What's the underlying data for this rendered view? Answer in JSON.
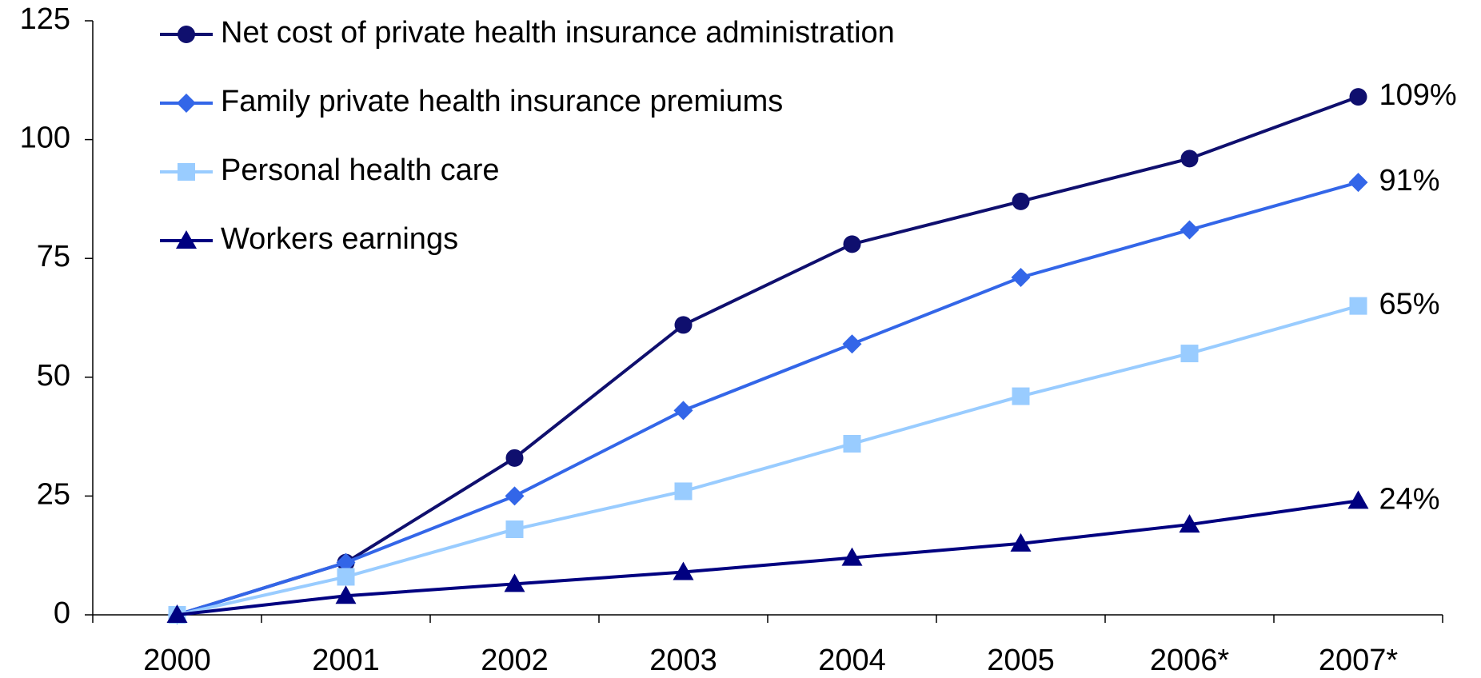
{
  "chart_data": {
    "type": "line",
    "categories": [
      "2000",
      "2001",
      "2002",
      "2003",
      "2004",
      "2005",
      "2006*",
      "2007*"
    ],
    "series": [
      {
        "name": "Net cost of private health insurance administration",
        "color": "#0f0f6e",
        "marker": "circle",
        "values": [
          0,
          11,
          33,
          61,
          78,
          87,
          96,
          109
        ],
        "value_labels": [
          null,
          null,
          null,
          null,
          null,
          null,
          null,
          "109%"
        ]
      },
      {
        "name": "Family private health insurance premiums",
        "color": "#3366e8",
        "marker": "diamond",
        "values": [
          0,
          11,
          25,
          43,
          57,
          71,
          81,
          91
        ],
        "value_labels": [
          null,
          null,
          null,
          null,
          null,
          null,
          null,
          "91%"
        ]
      },
      {
        "name": "Personal health care",
        "color": "#99ccff",
        "marker": "square",
        "values": [
          0,
          8,
          18,
          26,
          36,
          46,
          55,
          65
        ],
        "value_labels": [
          null,
          null,
          null,
          null,
          null,
          null,
          null,
          "65%"
        ]
      },
      {
        "name": "Workers earnings",
        "color": "#000080",
        "marker": "triangle",
        "values": [
          0,
          4,
          6.5,
          9,
          12,
          15,
          19,
          24
        ],
        "value_labels": [
          null,
          null,
          null,
          null,
          null,
          null,
          null,
          "24%"
        ]
      }
    ],
    "ylim": [
      0,
      125
    ],
    "yticks": [
      0,
      25,
      50,
      75,
      100,
      125
    ],
    "grid": false,
    "legend": "top-left"
  }
}
